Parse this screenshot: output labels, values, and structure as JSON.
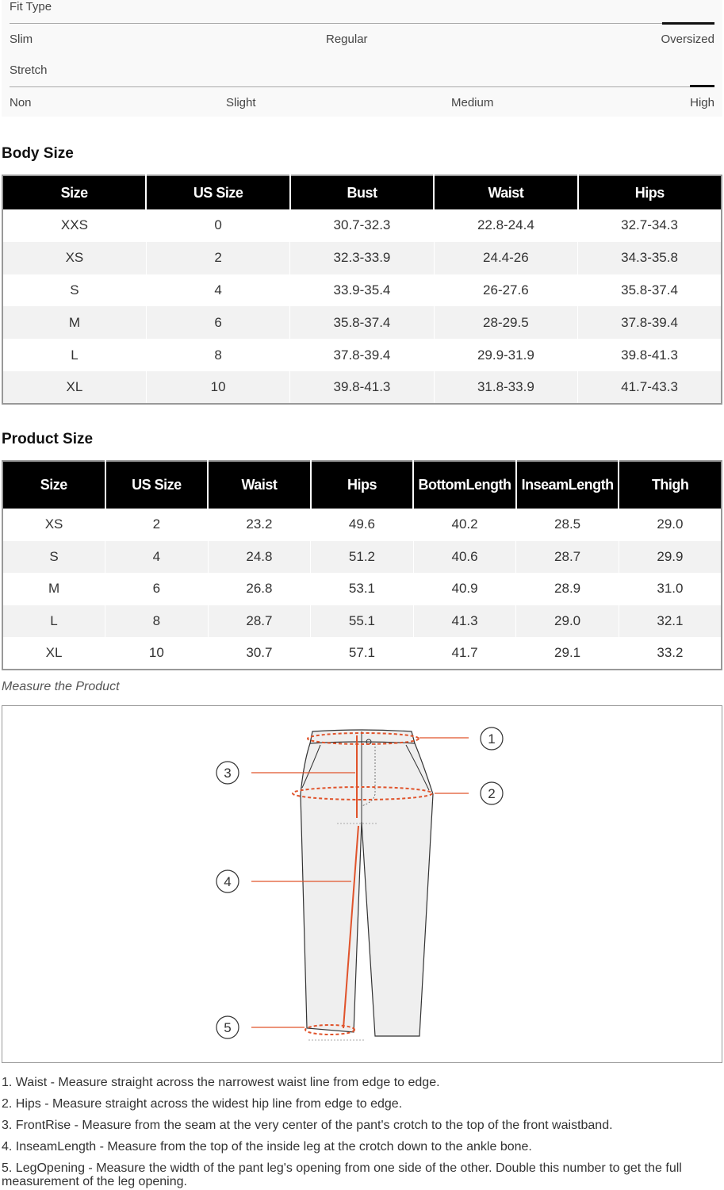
{
  "fit_type": {
    "title": "Fit Type",
    "options": [
      "Slim",
      "Regular",
      "Oversized"
    ],
    "selected": "Oversized"
  },
  "stretch": {
    "title": "Stretch",
    "options": [
      "Non",
      "Slight",
      "Medium",
      "High"
    ],
    "selected": "High"
  },
  "body_size": {
    "title": "Body Size",
    "headers": [
      "Size",
      "US Size",
      "Bust",
      "Waist",
      "Hips"
    ],
    "rows": [
      [
        "XXS",
        "0",
        "30.7-32.3",
        "22.8-24.4",
        "32.7-34.3"
      ],
      [
        "XS",
        "2",
        "32.3-33.9",
        "24.4-26",
        "34.3-35.8"
      ],
      [
        "S",
        "4",
        "33.9-35.4",
        "26-27.6",
        "35.8-37.4"
      ],
      [
        "M",
        "6",
        "35.8-37.4",
        "28-29.5",
        "37.8-39.4"
      ],
      [
        "L",
        "8",
        "37.8-39.4",
        "29.9-31.9",
        "39.8-41.3"
      ],
      [
        "XL",
        "10",
        "39.8-41.3",
        "31.8-33.9",
        "41.7-43.3"
      ]
    ]
  },
  "product_size": {
    "title": "Product Size",
    "headers": [
      "Size",
      "US Size",
      "Waist",
      "Hips",
      "BottomLength",
      "InseamLength",
      "Thigh"
    ],
    "rows": [
      [
        "XS",
        "2",
        "23.2",
        "49.6",
        "40.2",
        "28.5",
        "29.0"
      ],
      [
        "S",
        "4",
        "24.8",
        "51.2",
        "40.6",
        "28.7",
        "29.9"
      ],
      [
        "M",
        "6",
        "26.8",
        "53.1",
        "40.9",
        "28.9",
        "31.0"
      ],
      [
        "L",
        "8",
        "28.7",
        "55.1",
        "41.3",
        "29.0",
        "32.1"
      ],
      [
        "XL",
        "10",
        "30.7",
        "57.1",
        "41.7",
        "29.1",
        "33.2"
      ]
    ]
  },
  "measure": {
    "caption": "Measure the Product",
    "markers": [
      "1",
      "2",
      "3",
      "4",
      "5"
    ],
    "accent": "#e0532b",
    "notes": [
      "1. Waist - Measure straight across the narrowest waist line from edge to edge.",
      "2. Hips - Measure straight across the widest hip line from edge to edge.",
      "3. FrontRise - Measure from the seam at the very center of the pant's crotch to the top of the front waistband.",
      "4. InseamLength - Measure from the top of the inside leg at the crotch down to the ankle bone.",
      "5. LegOpening - Measure the width of the pant leg's opening from one side of the other. Double this number to get the full measurement of the leg opening."
    ]
  }
}
